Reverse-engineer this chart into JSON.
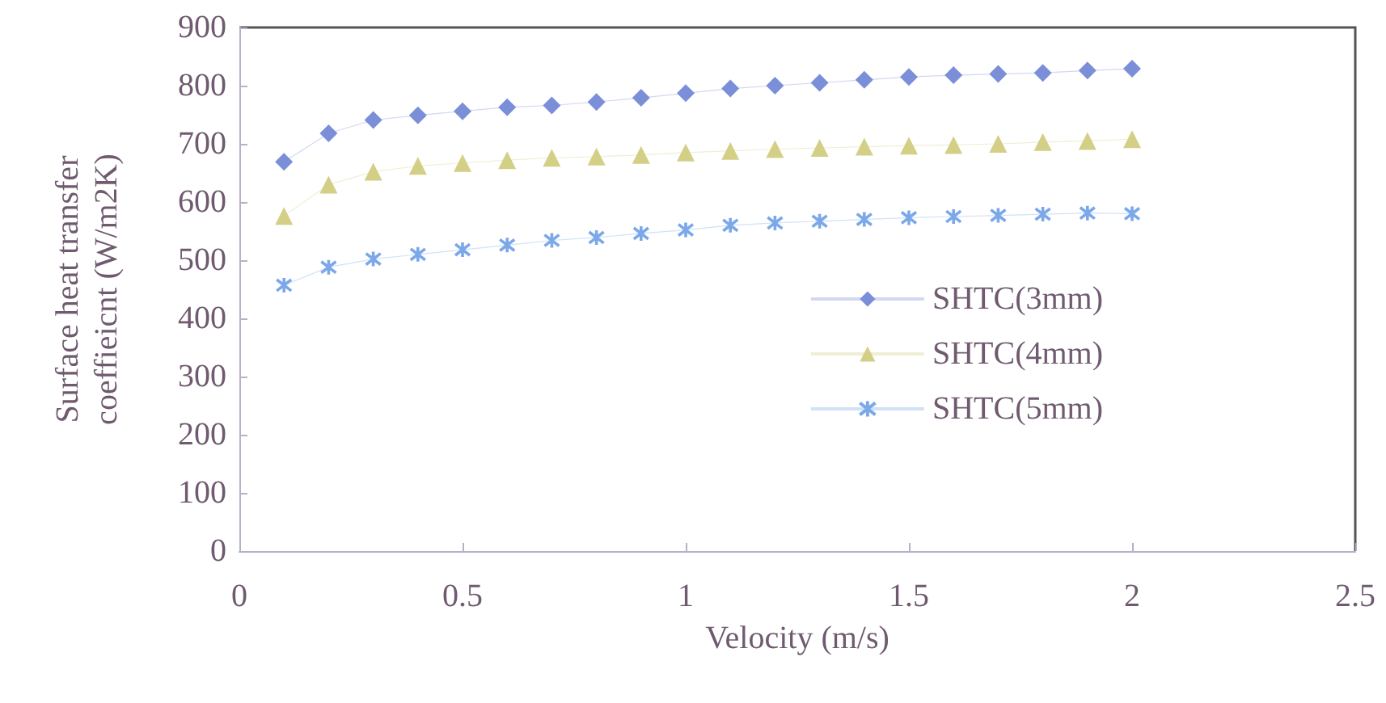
{
  "chart_data": {
    "type": "line",
    "xlabel": "Velocity (m/s)",
    "ylabel": "Surface heat transfer\ncoeffieicnt (W/m2K)",
    "x": [
      0.1,
      0.2,
      0.3,
      0.4,
      0.5,
      0.6,
      0.7,
      0.8,
      0.9,
      1.0,
      1.1,
      1.2,
      1.3,
      1.4,
      1.5,
      1.6,
      1.7,
      1.8,
      1.9,
      2.0
    ],
    "series": [
      {
        "name": "SHTC(3mm)",
        "color": "#7b8fd8",
        "marker": "diamond",
        "values": [
          669,
          718,
          741,
          749,
          756,
          763,
          766,
          772,
          779,
          787,
          795,
          800,
          805,
          810,
          815,
          818,
          820,
          822,
          826,
          829
        ]
      },
      {
        "name": "SHTC(4mm)",
        "color": "#d4cf86",
        "marker": "triangle",
        "values": [
          576,
          630,
          652,
          662,
          667,
          672,
          676,
          678,
          681,
          685,
          688,
          691,
          693,
          695,
          697,
          698,
          700,
          703,
          705,
          708
        ]
      },
      {
        "name": "SHTC(5mm)",
        "color": "#7aa8e8",
        "marker": "cross",
        "values": [
          457,
          488,
          502,
          510,
          518,
          526,
          534,
          539,
          546,
          552,
          560,
          564,
          567,
          570,
          573,
          575,
          577,
          579,
          581,
          580
        ]
      }
    ],
    "xlim": [
      0,
      2.5
    ],
    "xticks": [
      0,
      0.5,
      1,
      1.5,
      2,
      2.5
    ],
    "ylim": [
      0,
      900
    ],
    "yticks": [
      0,
      100,
      200,
      300,
      400,
      500,
      600,
      700,
      800,
      900
    ],
    "grid": false,
    "legend": "right"
  }
}
